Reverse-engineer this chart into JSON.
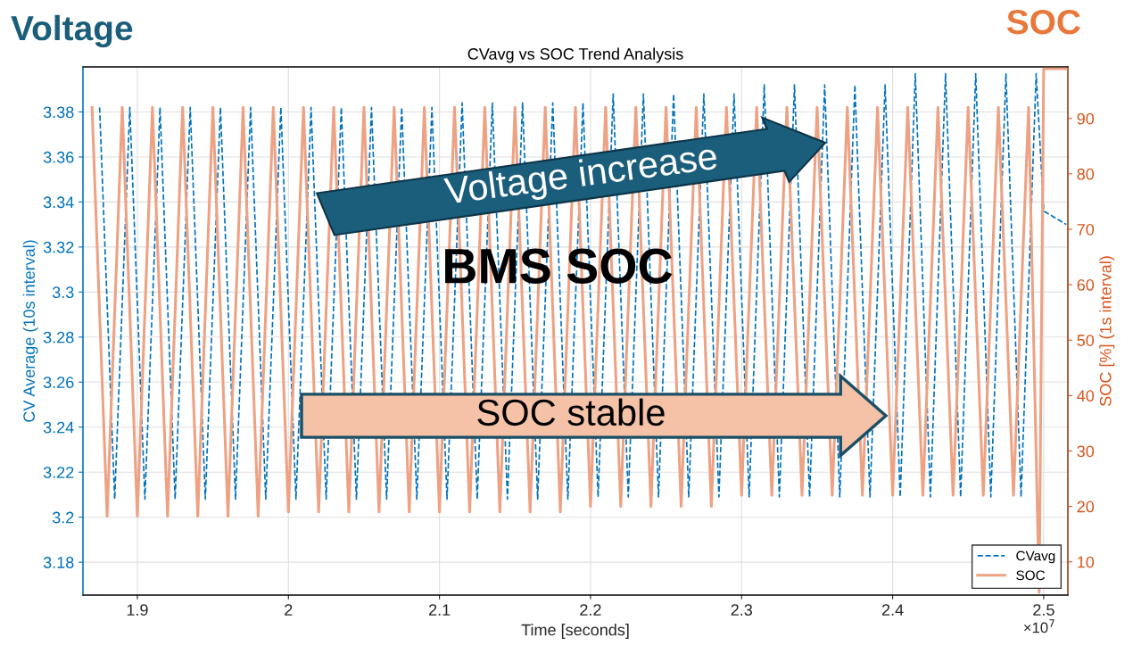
{
  "chart_data": {
    "type": "line",
    "title": "CVavg vs SOC Trend Analysis",
    "xlabel": "Time [seconds]",
    "ylabel": "CV Average (10s interval)",
    "y2label": "SOC [%] (1s interval)",
    "annotations": [
      "Voltage",
      "SOC",
      "BMS SOC",
      "Voltage increase",
      "SOC stable",
      "×10$^{7}$"
    ],
    "xlim": [
      1.864,
      2.516
    ],
    "xticks": [
      1.9,
      2,
      2.1,
      2.2,
      2.3,
      2.4,
      2.5
    ],
    "ylim": [
      3.1654,
      3.4
    ],
    "yticks": [
      3.18,
      3.2,
      3.22,
      3.24,
      3.26,
      3.28,
      3.3,
      3.32,
      3.34,
      3.36,
      3.38
    ],
    "y2lim": [
      4,
      99.3
    ],
    "y2ticks": [
      10,
      20,
      30,
      40,
      50,
      60,
      70,
      80,
      90
    ],
    "grid": true,
    "legend": "bottom right",
    "series": [
      {
        "name": "CVavg",
        "color": "#0072bd",
        "line_style": "dashed",
        "x": [
          1.875,
          1.885,
          1.895,
          1.905,
          1.915,
          1.925,
          1.935,
          1.945,
          1.955,
          1.965,
          1.975,
          1.985,
          1.995,
          2.005,
          2.015,
          2.025,
          2.035,
          2.045,
          2.055,
          2.065,
          2.075,
          2.085,
          2.095,
          2.105,
          2.115,
          2.125,
          2.135,
          2.145,
          2.155,
          2.165,
          2.175,
          2.185,
          2.195,
          2.205,
          2.215,
          2.225,
          2.235,
          2.245,
          2.255,
          2.265,
          2.275,
          2.285,
          2.295,
          2.305,
          2.315,
          2.325,
          2.335,
          2.345,
          2.355,
          2.365,
          2.375,
          2.385,
          2.395,
          2.405,
          2.415,
          2.425,
          2.435,
          2.445,
          2.455,
          2.465,
          2.475,
          2.485,
          2.495,
          2.5,
          2.515
        ],
        "values": [
          3.382,
          3.208,
          3.382,
          3.208,
          3.382,
          3.208,
          3.382,
          3.208,
          3.382,
          3.208,
          3.382,
          3.208,
          3.382,
          3.208,
          3.382,
          3.208,
          3.382,
          3.208,
          3.382,
          3.208,
          3.382,
          3.208,
          3.382,
          3.208,
          3.384,
          3.208,
          3.384,
          3.208,
          3.384,
          3.208,
          3.384,
          3.208,
          3.384,
          3.209,
          3.388,
          3.209,
          3.388,
          3.209,
          3.388,
          3.209,
          3.388,
          3.209,
          3.388,
          3.209,
          3.392,
          3.209,
          3.392,
          3.209,
          3.392,
          3.209,
          3.392,
          3.209,
          3.392,
          3.209,
          3.397,
          3.209,
          3.397,
          3.209,
          3.397,
          3.209,
          3.397,
          3.209,
          3.397,
          3.336,
          3.33
        ]
      },
      {
        "name": "SOC",
        "color": "#eda284",
        "axis": "y2",
        "line_style": "solid",
        "x": [
          1.87,
          1.88,
          1.89,
          1.9,
          1.91,
          1.92,
          1.93,
          1.94,
          1.95,
          1.96,
          1.97,
          1.98,
          1.99,
          2.0,
          2.01,
          2.02,
          2.03,
          2.04,
          2.05,
          2.06,
          2.07,
          2.08,
          2.09,
          2.1,
          2.11,
          2.12,
          2.13,
          2.14,
          2.15,
          2.16,
          2.17,
          2.18,
          2.19,
          2.2,
          2.21,
          2.22,
          2.23,
          2.24,
          2.25,
          2.26,
          2.27,
          2.28,
          2.29,
          2.3,
          2.31,
          2.32,
          2.33,
          2.34,
          2.35,
          2.36,
          2.37,
          2.38,
          2.39,
          2.4,
          2.41,
          2.42,
          2.43,
          2.44,
          2.45,
          2.46,
          2.47,
          2.48,
          2.49,
          2.497,
          2.5,
          2.515
        ],
        "values": [
          92,
          18.2,
          92,
          18.2,
          92,
          18.2,
          92,
          18.2,
          92,
          18.2,
          92,
          18.2,
          92,
          19,
          92,
          19,
          92,
          19,
          92,
          19,
          92,
          19,
          92,
          19,
          92,
          19,
          92,
          19,
          92,
          19,
          92,
          19,
          92,
          20,
          92,
          20,
          92,
          20,
          92,
          20,
          92,
          20,
          92,
          22,
          92,
          22,
          92,
          22,
          92,
          22,
          92,
          22,
          92,
          22,
          92,
          22,
          92,
          22,
          92,
          22,
          92,
          22,
          92,
          4.5,
          99,
          99
        ]
      }
    ]
  }
}
